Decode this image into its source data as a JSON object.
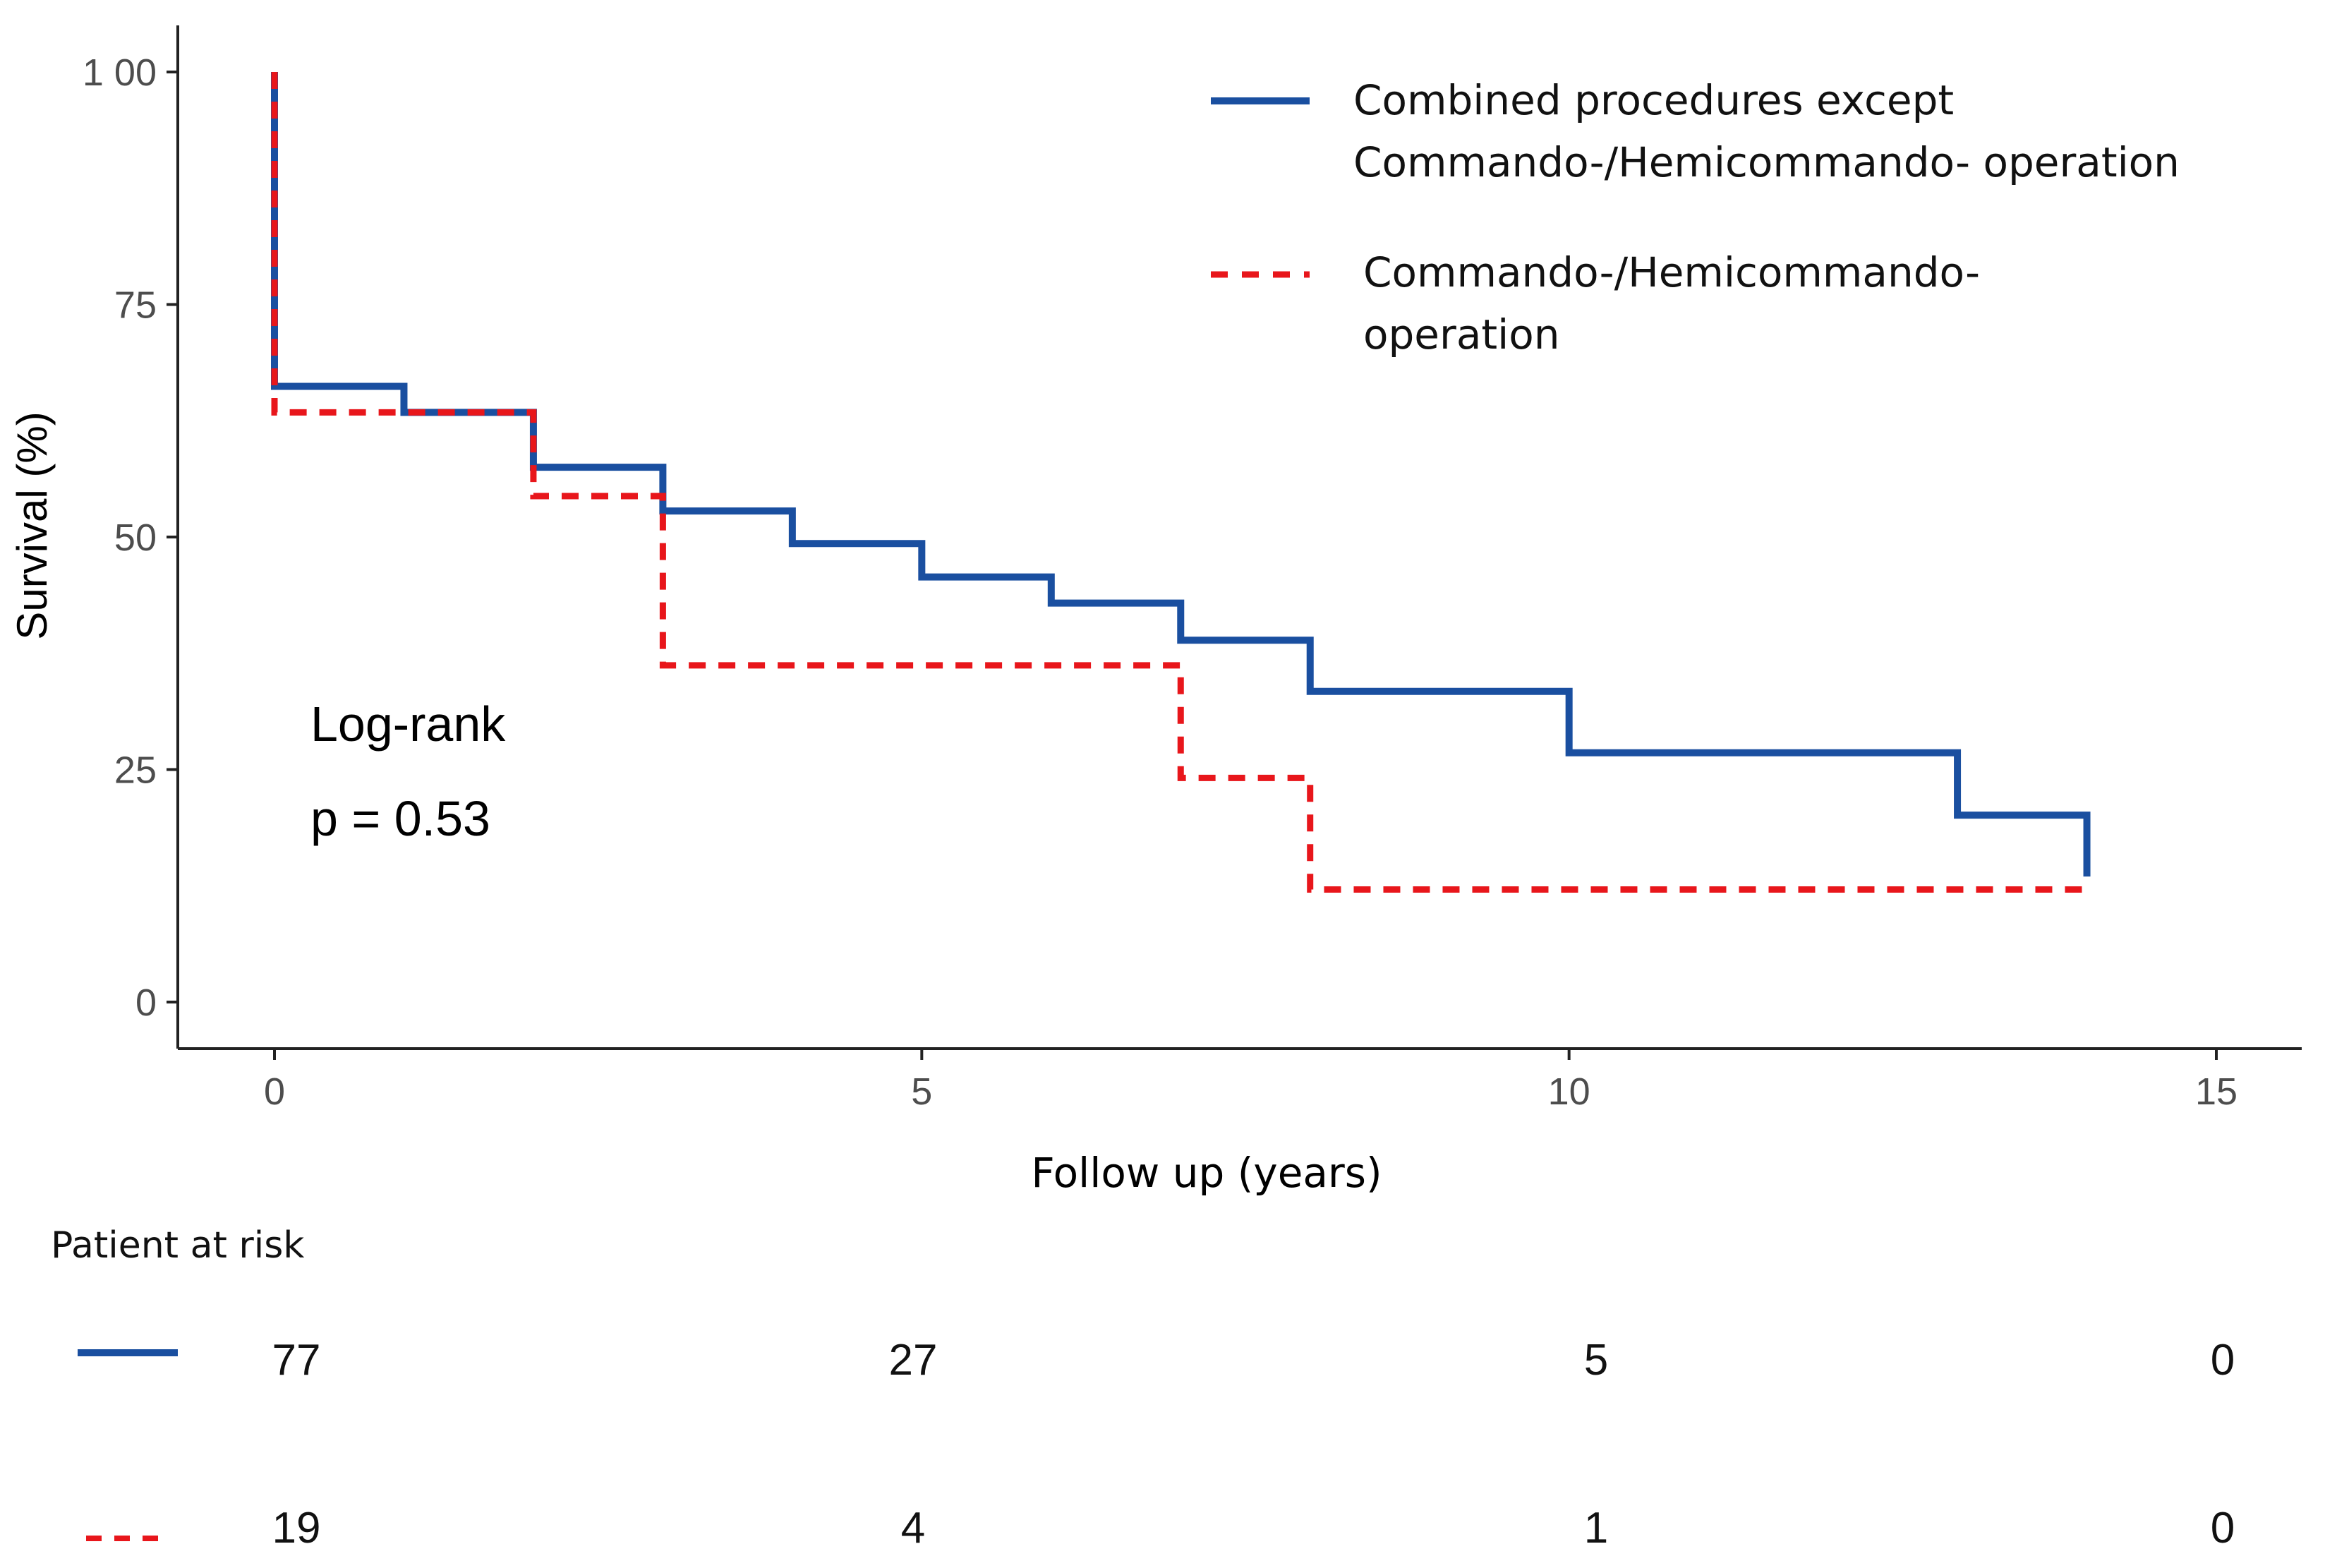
{
  "chart_data": {
    "type": "line",
    "subtype": "kaplan-meier step survival curve",
    "title": "",
    "xlabel": "Follow up (years)",
    "ylabel": "Survival (%)",
    "xlim": [
      0,
      15
    ],
    "ylim": [
      0,
      100
    ],
    "x_ticks": [
      0,
      5,
      10,
      15
    ],
    "x_tick_labels": [
      "0",
      "5",
      "10",
      "15"
    ],
    "y_ticks": [
      0,
      25,
      50,
      75,
      100
    ],
    "y_tick_labels": [
      "0",
      "25",
      "50",
      "75",
      "1 00"
    ],
    "grid": false,
    "legend_position": "top-right",
    "series": [
      {
        "name": "Combined procedures except Commando-/Hemicommando- operation",
        "legend_lines": [
          "Combined procedures except",
          "Commando-/Hemicommando- operation"
        ],
        "color": "#1a4fa0",
        "style": "solid",
        "steps": [
          {
            "x": 0,
            "y": 100
          },
          {
            "x": 0,
            "y": 66.2
          },
          {
            "x": 1,
            "y": 63.4
          },
          {
            "x": 2,
            "y": 57.5
          },
          {
            "x": 3,
            "y": 52.8
          },
          {
            "x": 4,
            "y": 49.3
          },
          {
            "x": 5,
            "y": 45.7
          },
          {
            "x": 6,
            "y": 42.9
          },
          {
            "x": 7,
            "y": 38.9
          },
          {
            "x": 8,
            "y": 33.4
          },
          {
            "x": 10,
            "y": 26.8
          },
          {
            "x": 13,
            "y": 20.1
          },
          {
            "x": 14,
            "y": 13.5
          }
        ]
      },
      {
        "name": "Commando-/Hemicommando- operation",
        "legend_lines": [
          "Commando-/Hemicommando-",
          "operation"
        ],
        "color": "#e8161b",
        "style": "dashed",
        "steps": [
          {
            "x": 0,
            "y": 100
          },
          {
            "x": 0,
            "y": 63.4
          },
          {
            "x": 2,
            "y": 54.4
          },
          {
            "x": 3,
            "y": 36.2
          },
          {
            "x": 7,
            "y": 24.1
          },
          {
            "x": 8,
            "y": 12.1
          },
          {
            "x": 14,
            "y": 12.1
          }
        ]
      }
    ],
    "annotations": [
      "Log-rank",
      "p = 0.53"
    ],
    "risk_table": {
      "title": "Patient at risk",
      "rows": [
        {
          "series": "Combined procedures except Commando-/Hemicommando- operation",
          "style": "solid",
          "values": [
            "77",
            "27",
            "5",
            "0"
          ]
        },
        {
          "series": "Commando-/Hemicommando- operation",
          "style": "dashed",
          "values": [
            "19",
            "4",
            "1",
            "0"
          ]
        }
      ]
    }
  }
}
